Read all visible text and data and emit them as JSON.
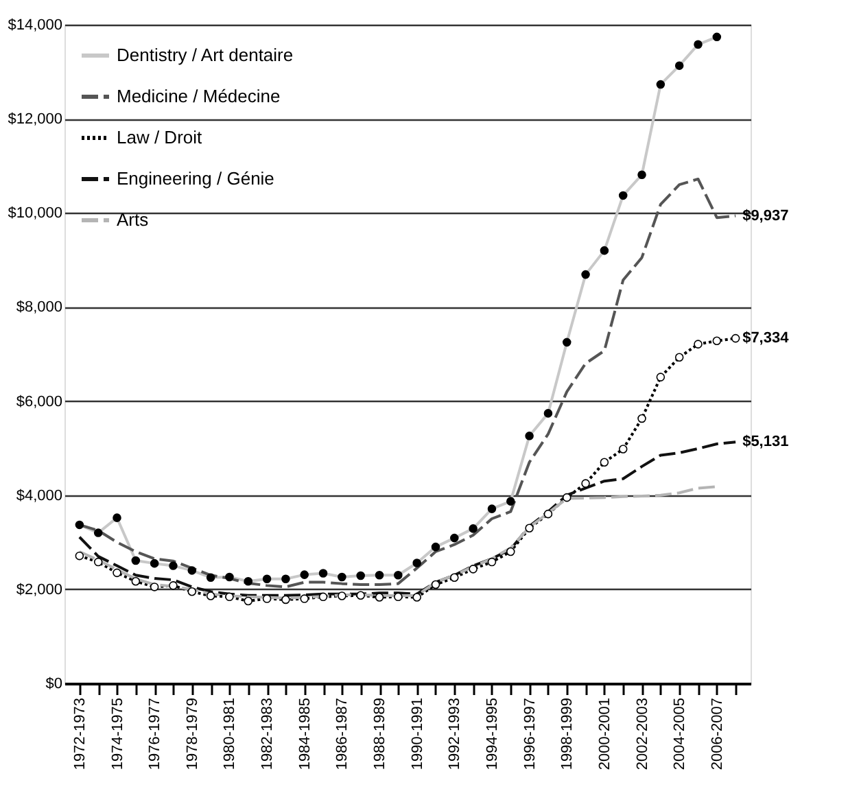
{
  "chart_data": {
    "type": "line",
    "categories": [
      "1972-1973",
      null,
      "1974-1975",
      null,
      "1976-1977",
      null,
      "1978-1979",
      null,
      "1980-1981",
      null,
      "1982-1983",
      null,
      "1984-1985",
      null,
      "1986-1987",
      null,
      "1988-1989",
      null,
      "1990-1991",
      null,
      "1992-1993",
      null,
      "1994-1995",
      null,
      "1996-1997",
      null,
      "1998-1999",
      null,
      "2000-2001",
      null,
      "2002-2003",
      null,
      "2004-2005",
      null,
      "2006-2007",
      null
    ],
    "series": [
      {
        "name": "Dentistry / Art dentaire",
        "color": "#c8c8c8",
        "line_style": "solid",
        "marker": "circle",
        "values": [
          3370,
          3200,
          3520,
          2610,
          2550,
          2500,
          2400,
          2250,
          2260,
          2170,
          2220,
          2220,
          2310,
          2340,
          2260,
          2290,
          2300,
          2300,
          2560,
          2900,
          3090,
          3290,
          3710,
          3870,
          5260,
          5740,
          7250,
          8690,
          9200,
          10370,
          10810,
          12730,
          13130,
          13580,
          13740,
          null
        ]
      },
      {
        "name": "Medicine / Médecine",
        "color": "#555555",
        "line_style": "dashed",
        "marker": "none",
        "values": [
          3370,
          3250,
          3000,
          2800,
          2650,
          2600,
          2450,
          2300,
          2230,
          2130,
          2080,
          2050,
          2150,
          2150,
          2120,
          2100,
          2100,
          2120,
          2450,
          2800,
          2950,
          3150,
          3500,
          3650,
          4700,
          5300,
          6200,
          6800,
          7070,
          8570,
          9050,
          10180,
          10600,
          10720,
          9900,
          9937
        ],
        "value_labels": [
          null,
          null,
          null,
          null,
          null,
          null,
          null,
          null,
          null,
          null,
          null,
          null,
          null,
          null,
          null,
          null,
          null,
          null,
          null,
          null,
          null,
          null,
          null,
          null,
          null,
          null,
          null,
          null,
          null,
          null,
          null,
          null,
          null,
          null,
          null,
          "$9,937"
        ]
      },
      {
        "name": "Law / Droit",
        "color": "#000000",
        "line_style": "dotted",
        "marker": "circle",
        "values": [
          2710,
          2580,
          2350,
          2170,
          2050,
          2080,
          1950,
          1860,
          1840,
          1750,
          1800,
          1780,
          1800,
          1840,
          1860,
          1870,
          1830,
          1840,
          1830,
          2100,
          2250,
          2430,
          2580,
          2800,
          3300,
          3600,
          3950,
          4250,
          4700,
          4980,
          5630,
          6510,
          6930,
          7210,
          7280,
          7334
        ],
        "value_labels": [
          null,
          null,
          null,
          null,
          null,
          null,
          null,
          null,
          null,
          null,
          null,
          null,
          null,
          null,
          null,
          null,
          null,
          null,
          null,
          null,
          null,
          null,
          null,
          null,
          null,
          null,
          null,
          null,
          null,
          null,
          null,
          null,
          null,
          null,
          null,
          "$7,334"
        ]
      },
      {
        "name": "Engineering / Génie",
        "color": "#111111",
        "line_style": "dashed",
        "marker": "none",
        "values": [
          3110,
          2700,
          2500,
          2300,
          2230,
          2200,
          2050,
          1950,
          1900,
          1870,
          1870,
          1870,
          1880,
          1900,
          1900,
          1900,
          1920,
          1920,
          1900,
          2150,
          2300,
          2500,
          2650,
          2850,
          3340,
          3650,
          4000,
          4150,
          4300,
          4350,
          4610,
          4850,
          4900,
          4990,
          5090,
          5131
        ],
        "value_labels": [
          null,
          null,
          null,
          null,
          null,
          null,
          null,
          null,
          null,
          null,
          null,
          null,
          null,
          null,
          null,
          null,
          null,
          null,
          null,
          null,
          null,
          null,
          null,
          null,
          null,
          null,
          null,
          null,
          null,
          null,
          null,
          null,
          null,
          null,
          null,
          "$5,131"
        ]
      },
      {
        "name": "Arts",
        "color": "#b4b4b4",
        "line_style": "dashed",
        "marker": "none",
        "values": [
          2800,
          2620,
          2420,
          2220,
          2100,
          2060,
          2000,
          1900,
          1860,
          1840,
          1830,
          1810,
          1830,
          1850,
          1880,
          1880,
          1870,
          1860,
          1870,
          2150,
          2300,
          2480,
          2650,
          2880,
          3320,
          3620,
          3930,
          3940,
          3950,
          3970,
          3980,
          4000,
          4050,
          4150,
          4180,
          null
        ]
      }
    ],
    "ylim": [
      0,
      14000
    ],
    "yticks": [
      {
        "value": 0,
        "label": "$0"
      },
      {
        "value": 2000,
        "label": "$2,000"
      },
      {
        "value": 4000,
        "label": "$4,000"
      },
      {
        "value": 6000,
        "label": "$6,000"
      },
      {
        "value": 8000,
        "label": "$8,000"
      },
      {
        "value": 10000,
        "label": "$10,000"
      },
      {
        "value": 12000,
        "label": "$12,000"
      },
      {
        "value": 14000,
        "label": "$14,000"
      }
    ],
    "grid": "y",
    "legend": "top left"
  }
}
